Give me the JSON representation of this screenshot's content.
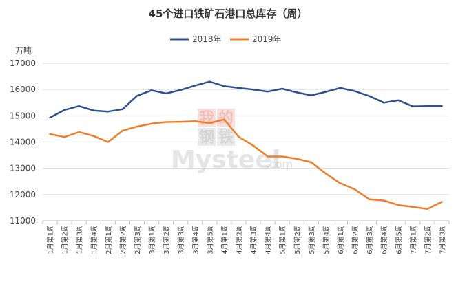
{
  "chart_data": {
    "type": "line",
    "title": "45个进口铁矿石港口总库存（周）",
    "unit_label": "万吨",
    "ylim": [
      11000,
      17000
    ],
    "yticks": [
      11000,
      12000,
      13000,
      14000,
      15000,
      16000,
      17000
    ],
    "grid": true,
    "legend_position": "top",
    "categories": [
      "1月第1周",
      "1月第2周",
      "1月第3周",
      "1月第4周",
      "2月第1周",
      "2月第2周",
      "2月第3周",
      "3月第1周",
      "3月第2周",
      "3月第3周",
      "3月第4周",
      "3月第5周",
      "4月第1周",
      "4月第2周",
      "4月第3周",
      "4月第4周",
      "5月第1周",
      "5月第2周",
      "5月第3周",
      "5月第4周",
      "6月第1周",
      "6月第2周",
      "6月第3周",
      "6月第4周",
      "6月第5周",
      "7月第1周",
      "7月第2周",
      "7月第3周"
    ],
    "series": [
      {
        "name": "2018年",
        "color": "#2f4f8f",
        "values": [
          14930,
          15220,
          15370,
          15200,
          15160,
          15250,
          15760,
          15970,
          15850,
          15980,
          16150,
          16300,
          16130,
          16060,
          16000,
          15920,
          16030,
          15890,
          15780,
          15910,
          16060,
          15940,
          15750,
          15500,
          15590,
          15360,
          15370,
          15370
        ]
      },
      {
        "name": "2019年",
        "color": "#f07d28",
        "values": [
          14300,
          14190,
          14380,
          14230,
          14000,
          14430,
          14590,
          14700,
          14760,
          14770,
          14790,
          14720,
          14860,
          14200,
          13870,
          13450,
          13450,
          13360,
          13230,
          12800,
          12430,
          12200,
          11820,
          11770,
          11600,
          11530,
          11450,
          11720
        ]
      }
    ]
  },
  "watermark": {
    "cn_top": [
      "我",
      "的"
    ],
    "cn_bottom": [
      "钢",
      "铁"
    ],
    "brand": "Mysteel",
    "domain": ".com"
  }
}
